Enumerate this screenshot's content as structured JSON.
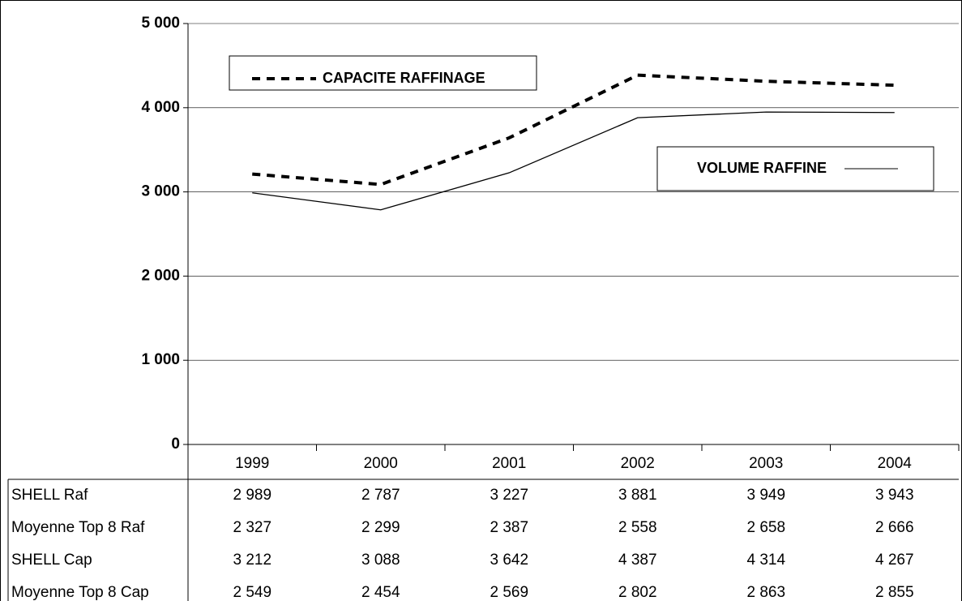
{
  "chart_data": {
    "type": "line",
    "categories": [
      "1999",
      "2000",
      "2001",
      "2002",
      "2003",
      "2004"
    ],
    "series": [
      {
        "name": "SHELL  Raf",
        "color": "#000000",
        "style": "solid",
        "values": [
          2989,
          2787,
          3227,
          3881,
          3949,
          3943
        ],
        "value_labels": [
          "2 989",
          "2 787",
          "3 227",
          "3 881",
          "3 949",
          "3 943"
        ]
      },
      {
        "name": "Moyenne Top 8 Raf",
        "color": "#000000",
        "style": null,
        "values": [
          2327,
          2299,
          2387,
          2558,
          2658,
          2666
        ],
        "value_labels": [
          "2 327",
          "2 299",
          "2 387",
          "2 558",
          "2 658",
          "2 666"
        ]
      },
      {
        "name": "SHELL Cap",
        "color": "#000000",
        "style": "dashed",
        "values": [
          3212,
          3088,
          3642,
          4387,
          4314,
          4267
        ],
        "value_labels": [
          "3 212",
          "3 088",
          "3 642",
          "4 387",
          "4 314",
          "4 267"
        ]
      },
      {
        "name": "Moyenne Top 8 Cap",
        "color": "#000000",
        "style": null,
        "values": [
          2549,
          2454,
          2569,
          2802,
          2863,
          2855
        ],
        "value_labels": [
          "2 549",
          "2 454",
          "2 569",
          "2 802",
          "2 863",
          "2 855"
        ]
      }
    ],
    "annotations": [
      "CAPACITE RAFFINAGE",
      "VOLUME RAFFINE"
    ],
    "ylim": [
      0,
      5000
    ],
    "yticks": [
      0,
      {
        "value": 1000,
        "label": "1 000"
      },
      {
        "value": 2000,
        "label": "2 000"
      },
      {
        "value": 3000,
        "label": "3 000"
      },
      {
        "value": 4000,
        "label": "4 000"
      },
      {
        "value": 5000,
        "label": "5 000"
      }
    ],
    "grid": true
  }
}
